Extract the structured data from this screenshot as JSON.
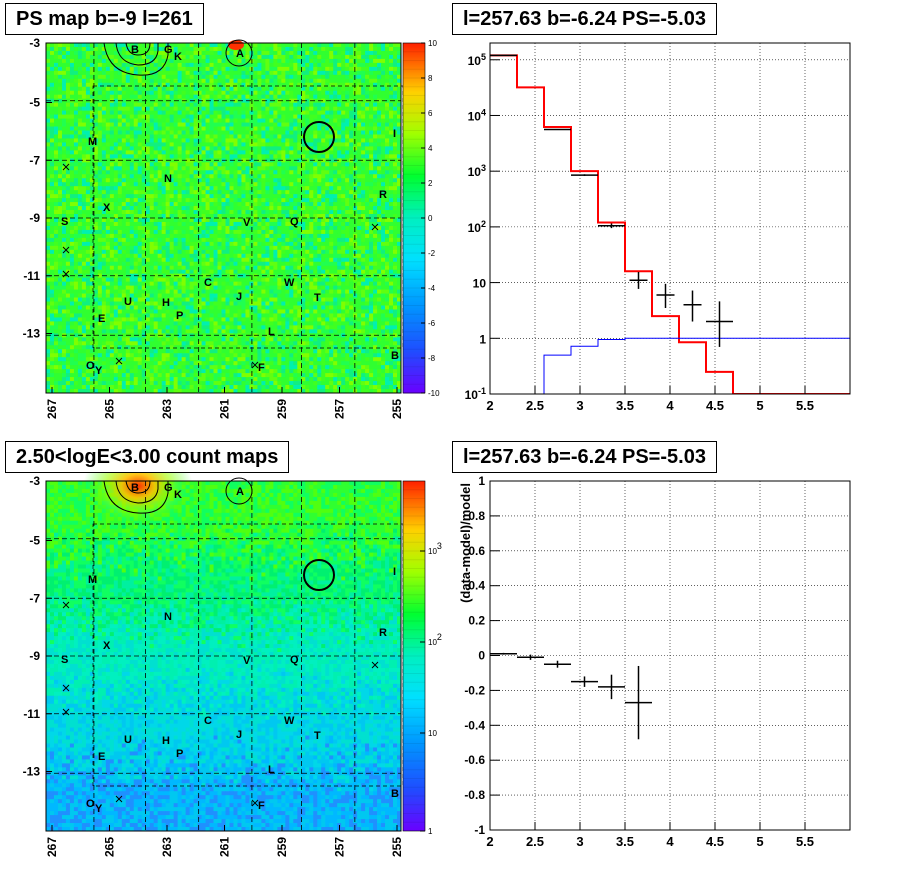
{
  "panels": {
    "top_left_title": "PS map b=-9 l=261",
    "top_right_title": "l=257.63 b=-6.24 PS=-5.03",
    "bottom_left_title": "2.50<logE<3.00 count maps",
    "bottom_right_title": "l=257.63 b=-6.24 PS=-5.03"
  },
  "colors": {
    "data": "#000000",
    "model": "#ff0000",
    "background_model": "#0000ff",
    "grid": "#000000"
  },
  "map_axes": {
    "x_ticks": [
      "267",
      "265",
      "263",
      "261",
      "259",
      "257",
      "255"
    ],
    "y_ticks": [
      "-3",
      "-5",
      "-7",
      "-9",
      "-11",
      "-13"
    ]
  },
  "source_labels": [
    "B",
    "G",
    "K",
    "A",
    "M",
    "N",
    "X",
    "S",
    "V",
    "Q",
    "R",
    "C",
    "W",
    "J",
    "T",
    "U",
    "H",
    "E",
    "P",
    "L",
    "O",
    "Y",
    "F",
    "B",
    "I"
  ],
  "chart_data": [
    {
      "type": "heatmap",
      "panel": "top-left",
      "xlim": [
        267.5,
        255
      ],
      "ylim": [
        -15,
        -3
      ],
      "colorbar": {
        "min": -10,
        "max": 10,
        "ticks": [
          "10",
          "8",
          "6",
          "4",
          "2",
          "0",
          "-2",
          "-4",
          "-6",
          "-8",
          "-10"
        ]
      }
    },
    {
      "type": "line",
      "panel": "top-right",
      "yscale": "log",
      "xlim": [
        2,
        6
      ],
      "ylim": [
        0.1,
        200000
      ],
      "x_ticks": [
        "2",
        "2.5",
        "3",
        "3.5",
        "4",
        "4.5",
        "5",
        "5.5"
      ],
      "y_ticks": [
        "10^5",
        "10^4",
        "10^3",
        "10^2",
        "10",
        "1",
        "10^-1"
      ],
      "grid": true,
      "series": [
        {
          "style": "step",
          "bin_edges": [
            2.0,
            2.3,
            2.6,
            2.9,
            3.2,
            3.5,
            3.8,
            4.1,
            4.4,
            4.7,
            6.0
          ],
          "values": [
            120000,
            32000,
            6200,
            1000,
            120,
            16,
            2.5,
            0.85,
            0.25,
            0.1
          ]
        },
        {
          "style": "step",
          "bin_edges": [
            2.0,
            2.3,
            2.6,
            2.9,
            3.2,
            3.5,
            3.8,
            4.1,
            6.0
          ],
          "values": [
            0.0001,
            0.0001,
            0.5,
            0.72,
            0.95,
            1.0,
            1.0,
            1.0
          ]
        },
        {
          "style": "points_with_errors",
          "x": [
            2.15,
            2.75,
            3.05,
            3.35,
            3.65,
            3.95,
            4.25,
            4.55
          ],
          "y": [
            120000,
            5600,
            850,
            105,
            11,
            6,
            4,
            2
          ],
          "xerr": [
            0.15,
            0.15,
            0.15,
            0.15,
            0.1,
            0.1,
            0.1,
            0.15
          ],
          "yerr_low": [
            300,
            75,
            30,
            10,
            3.3,
            2.5,
            2,
            1.3
          ],
          "yerr_high": [
            300,
            75,
            30,
            10,
            4.5,
            3.5,
            3.2,
            2.6
          ]
        }
      ]
    },
    {
      "type": "heatmap",
      "panel": "bottom-left",
      "xlim": [
        267.5,
        255
      ],
      "ylim": [
        -15,
        -3
      ],
      "colorbar": {
        "scale": "log",
        "min": 1,
        "max": 5000,
        "ticks": [
          "10^3",
          "10^2",
          "10",
          "1"
        ]
      }
    },
    {
      "type": "scatter",
      "panel": "bottom-right",
      "xlim": [
        2,
        6
      ],
      "ylim": [
        -1,
        1
      ],
      "ylabel": "(data-model)/model",
      "x_ticks": [
        "2",
        "2.5",
        "3",
        "3.5",
        "4",
        "4.5",
        "5",
        "5.5"
      ],
      "y_ticks": [
        "1",
        "0.8",
        "0.6",
        "0.4",
        "0.2",
        "0",
        "-0.2",
        "-0.4",
        "-0.6",
        "-0.8",
        "-1"
      ],
      "grid": true,
      "series": [
        {
          "x": [
            2.15,
            2.45,
            2.75,
            3.05,
            3.35,
            3.65
          ],
          "y": [
            0.01,
            -0.01,
            -0.05,
            -0.15,
            -0.18,
            -0.27
          ],
          "xerr": [
            0.15,
            0.15,
            0.15,
            0.15,
            0.15,
            0.15
          ],
          "yerr": [
            0.005,
            0.015,
            0.02,
            0.03,
            0.07,
            0.21
          ]
        }
      ]
    }
  ]
}
